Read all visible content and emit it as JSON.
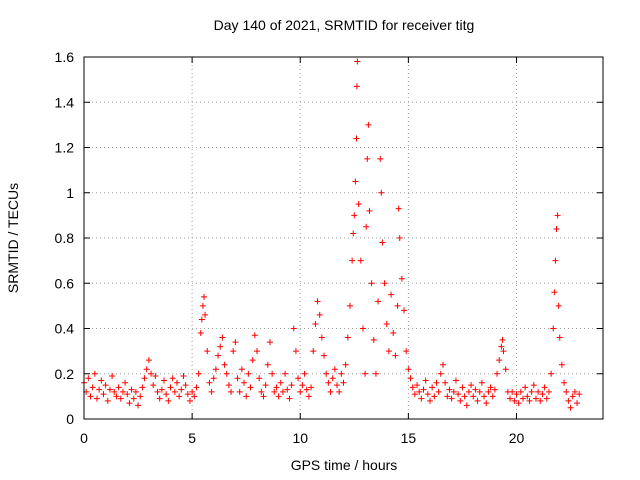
{
  "chart_data": {
    "type": "scatter",
    "title": "Day 140 of 2021, SRMTID for receiver titg",
    "xlabel": "GPS time / hours",
    "ylabel": "SRMTID / TECUs",
    "xlim": [
      0,
      24
    ],
    "ylim": [
      0,
      1.6
    ],
    "xticks": [
      0,
      5,
      10,
      15,
      20
    ],
    "yticks": [
      0,
      0.2,
      0.4,
      0.6,
      0.8,
      1,
      1.2,
      1.4,
      1.6
    ],
    "ytick_labels": [
      "0",
      "0.2",
      "0.4",
      "0.6",
      "0.8",
      "1",
      "1.2",
      "1.4",
      "1.6"
    ],
    "grid": true,
    "marker": "+",
    "color": "#ff0000",
    "series": [
      {
        "name": "SRMTID",
        "points": [
          [
            0.0,
            0.16
          ],
          [
            0.1,
            0.12
          ],
          [
            0.2,
            0.18
          ],
          [
            0.3,
            0.1
          ],
          [
            0.4,
            0.14
          ],
          [
            0.5,
            0.2
          ],
          [
            0.6,
            0.09
          ],
          [
            0.7,
            0.13
          ],
          [
            0.8,
            0.17
          ],
          [
            0.9,
            0.11
          ],
          [
            1.0,
            0.15
          ],
          [
            1.1,
            0.08
          ],
          [
            1.2,
            0.13
          ],
          [
            1.3,
            0.19
          ],
          [
            1.4,
            0.12
          ],
          [
            1.5,
            0.1
          ],
          [
            1.6,
            0.14
          ],
          [
            1.7,
            0.09
          ],
          [
            1.8,
            0.12
          ],
          [
            1.9,
            0.16
          ],
          [
            2.0,
            0.11
          ],
          [
            2.1,
            0.07
          ],
          [
            2.2,
            0.13
          ],
          [
            2.3,
            0.09
          ],
          [
            2.4,
            0.12
          ],
          [
            2.5,
            0.06
          ],
          [
            2.6,
            0.1
          ],
          [
            2.7,
            0.14
          ],
          [
            2.8,
            0.18
          ],
          [
            2.9,
            0.22
          ],
          [
            3.0,
            0.26
          ],
          [
            3.1,
            0.2
          ],
          [
            3.2,
            0.15
          ],
          [
            3.3,
            0.19
          ],
          [
            3.4,
            0.12
          ],
          [
            3.5,
            0.09
          ],
          [
            3.6,
            0.13
          ],
          [
            3.7,
            0.17
          ],
          [
            3.8,
            0.11
          ],
          [
            3.9,
            0.08
          ],
          [
            4.0,
            0.14
          ],
          [
            4.1,
            0.18
          ],
          [
            4.2,
            0.12
          ],
          [
            4.3,
            0.16
          ],
          [
            4.4,
            0.1
          ],
          [
            4.5,
            0.13
          ],
          [
            4.6,
            0.19
          ],
          [
            4.7,
            0.15
          ],
          [
            4.8,
            0.11
          ],
          [
            4.9,
            0.08
          ],
          [
            5.0,
            0.12
          ],
          [
            5.1,
            0.1
          ],
          [
            5.2,
            0.14
          ],
          [
            5.3,
            0.2
          ],
          [
            5.4,
            0.38
          ],
          [
            5.45,
            0.44
          ],
          [
            5.5,
            0.5
          ],
          [
            5.55,
            0.54
          ],
          [
            5.6,
            0.46
          ],
          [
            5.7,
            0.3
          ],
          [
            5.8,
            0.16
          ],
          [
            5.9,
            0.12
          ],
          [
            6.0,
            0.18
          ],
          [
            6.1,
            0.22
          ],
          [
            6.2,
            0.28
          ],
          [
            6.3,
            0.32
          ],
          [
            6.4,
            0.36
          ],
          [
            6.5,
            0.24
          ],
          [
            6.6,
            0.2
          ],
          [
            6.7,
            0.15
          ],
          [
            6.8,
            0.12
          ],
          [
            6.9,
            0.3
          ],
          [
            7.0,
            0.34
          ],
          [
            7.1,
            0.18
          ],
          [
            7.2,
            0.12
          ],
          [
            7.3,
            0.22
          ],
          [
            7.4,
            0.16
          ],
          [
            7.5,
            0.1
          ],
          [
            7.6,
            0.2
          ],
          [
            7.7,
            0.14
          ],
          [
            7.8,
            0.26
          ],
          [
            7.9,
            0.37
          ],
          [
            8.0,
            0.3
          ],
          [
            8.1,
            0.18
          ],
          [
            8.2,
            0.12
          ],
          [
            8.3,
            0.1
          ],
          [
            8.4,
            0.15
          ],
          [
            8.5,
            0.24
          ],
          [
            8.6,
            0.34
          ],
          [
            8.7,
            0.2
          ],
          [
            8.8,
            0.12
          ],
          [
            8.9,
            0.14
          ],
          [
            9.0,
            0.1
          ],
          [
            9.1,
            0.16
          ],
          [
            9.2,
            0.12
          ],
          [
            9.3,
            0.2
          ],
          [
            9.4,
            0.13
          ],
          [
            9.5,
            0.09
          ],
          [
            9.6,
            0.15
          ],
          [
            9.7,
            0.4
          ],
          [
            9.8,
            0.3
          ],
          [
            9.9,
            0.18
          ],
          [
            10.0,
            0.12
          ],
          [
            10.1,
            0.15
          ],
          [
            10.2,
            0.2
          ],
          [
            10.3,
            0.13
          ],
          [
            10.4,
            0.1
          ],
          [
            10.5,
            0.14
          ],
          [
            10.6,
            0.3
          ],
          [
            10.7,
            0.42
          ],
          [
            10.8,
            0.52
          ],
          [
            10.9,
            0.46
          ],
          [
            11.0,
            0.36
          ],
          [
            11.1,
            0.28
          ],
          [
            11.2,
            0.2
          ],
          [
            11.3,
            0.16
          ],
          [
            11.4,
            0.12
          ],
          [
            11.5,
            0.18
          ],
          [
            11.6,
            0.22
          ],
          [
            11.7,
            0.15
          ],
          [
            11.8,
            0.12
          ],
          [
            11.9,
            0.2
          ],
          [
            12.0,
            0.16
          ],
          [
            12.1,
            0.24
          ],
          [
            12.2,
            0.36
          ],
          [
            12.3,
            0.5
          ],
          [
            12.4,
            0.7
          ],
          [
            12.45,
            0.82
          ],
          [
            12.5,
            0.9
          ],
          [
            12.55,
            1.05
          ],
          [
            12.6,
            1.24
          ],
          [
            12.62,
            1.47
          ],
          [
            12.64,
            1.58
          ],
          [
            12.7,
            0.95
          ],
          [
            12.8,
            0.7
          ],
          [
            12.9,
            0.4
          ],
          [
            13.0,
            0.2
          ],
          [
            13.05,
            0.85
          ],
          [
            13.1,
            1.15
          ],
          [
            13.15,
            1.3
          ],
          [
            13.2,
            0.92
          ],
          [
            13.3,
            0.6
          ],
          [
            13.4,
            0.35
          ],
          [
            13.5,
            0.2
          ],
          [
            13.6,
            0.52
          ],
          [
            13.7,
            1.15
          ],
          [
            13.75,
            1.0
          ],
          [
            13.8,
            0.78
          ],
          [
            13.9,
            0.6
          ],
          [
            14.0,
            0.42
          ],
          [
            14.1,
            0.3
          ],
          [
            14.2,
            0.55
          ],
          [
            14.3,
            0.38
          ],
          [
            14.4,
            0.28
          ],
          [
            14.5,
            0.5
          ],
          [
            14.55,
            0.93
          ],
          [
            14.6,
            0.8
          ],
          [
            14.7,
            0.62
          ],
          [
            14.8,
            0.48
          ],
          [
            14.9,
            0.3
          ],
          [
            15.0,
            0.22
          ],
          [
            15.1,
            0.18
          ],
          [
            15.2,
            0.14
          ],
          [
            15.3,
            0.11
          ],
          [
            15.4,
            0.15
          ],
          [
            15.5,
            0.12
          ],
          [
            15.6,
            0.09
          ],
          [
            15.7,
            0.13
          ],
          [
            15.8,
            0.17
          ],
          [
            15.9,
            0.11
          ],
          [
            16.0,
            0.08
          ],
          [
            16.1,
            0.14
          ],
          [
            16.2,
            0.1
          ],
          [
            16.3,
            0.16
          ],
          [
            16.4,
            0.12
          ],
          [
            16.5,
            0.2
          ],
          [
            16.6,
            0.24
          ],
          [
            16.7,
            0.16
          ],
          [
            16.8,
            0.1
          ],
          [
            16.9,
            0.13
          ],
          [
            17.0,
            0.09
          ],
          [
            17.1,
            0.12
          ],
          [
            17.2,
            0.17
          ],
          [
            17.3,
            0.11
          ],
          [
            17.4,
            0.08
          ],
          [
            17.5,
            0.14
          ],
          [
            17.6,
            0.1
          ],
          [
            17.7,
            0.06
          ],
          [
            17.8,
            0.12
          ],
          [
            17.9,
            0.15
          ],
          [
            18.0,
            0.1
          ],
          [
            18.1,
            0.13
          ],
          [
            18.2,
            0.08
          ],
          [
            18.3,
            0.12
          ],
          [
            18.4,
            0.16
          ],
          [
            18.5,
            0.1
          ],
          [
            18.6,
            0.07
          ],
          [
            18.7,
            0.12
          ],
          [
            18.8,
            0.14
          ],
          [
            18.9,
            0.1
          ],
          [
            19.0,
            0.13
          ],
          [
            19.1,
            0.2
          ],
          [
            19.2,
            0.26
          ],
          [
            19.3,
            0.32
          ],
          [
            19.35,
            0.35
          ],
          [
            19.4,
            0.3
          ],
          [
            19.5,
            0.22
          ],
          [
            19.6,
            0.12
          ],
          [
            19.7,
            0.09
          ],
          [
            19.8,
            0.12
          ],
          [
            19.9,
            0.08
          ],
          [
            20.0,
            0.11
          ],
          [
            20.1,
            0.07
          ],
          [
            20.2,
            0.12
          ],
          [
            20.3,
            0.09
          ],
          [
            20.4,
            0.14
          ],
          [
            20.5,
            0.1
          ],
          [
            20.6,
            0.08
          ],
          [
            20.7,
            0.12
          ],
          [
            20.8,
            0.15
          ],
          [
            20.9,
            0.09
          ],
          [
            21.0,
            0.12
          ],
          [
            21.1,
            0.08
          ],
          [
            21.2,
            0.11
          ],
          [
            21.3,
            0.14
          ],
          [
            21.4,
            0.09
          ],
          [
            21.5,
            0.12
          ],
          [
            21.6,
            0.2
          ],
          [
            21.7,
            0.4
          ],
          [
            21.75,
            0.56
          ],
          [
            21.8,
            0.7
          ],
          [
            21.85,
            0.84
          ],
          [
            21.9,
            0.9
          ],
          [
            21.95,
            0.5
          ],
          [
            22.0,
            0.36
          ],
          [
            22.1,
            0.24
          ],
          [
            22.2,
            0.16
          ],
          [
            22.3,
            0.12
          ],
          [
            22.4,
            0.08
          ],
          [
            22.5,
            0.05
          ],
          [
            22.6,
            0.1
          ],
          [
            22.7,
            0.12
          ],
          [
            22.8,
            0.07
          ],
          [
            22.9,
            0.11
          ]
        ]
      }
    ]
  }
}
